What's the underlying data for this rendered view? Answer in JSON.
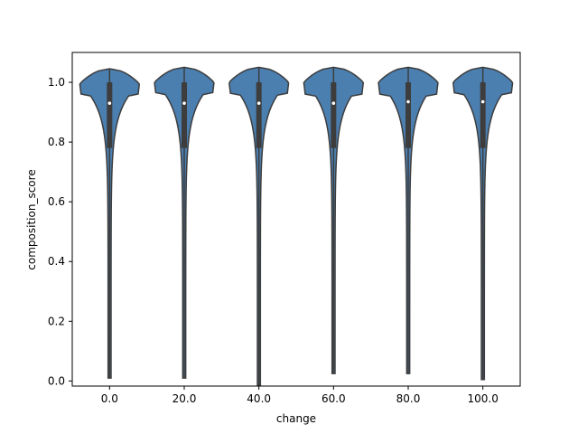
{
  "chart_data": {
    "type": "violin",
    "xlabel": "change",
    "ylabel": "composition_score",
    "categories": [
      "0.0",
      "20.0",
      "40.0",
      "60.0",
      "80.0",
      "100.0"
    ],
    "ylim": [
      -0.017,
      1.1
    ],
    "yticks": [
      "0.0",
      "0.2",
      "0.4",
      "0.6",
      "0.8",
      "1.0"
    ],
    "grid": false,
    "fill_color": "#4b7fb0",
    "edge_color": "#3d3d3d",
    "violins": [
      {
        "category": "0.0",
        "min": 0.01,
        "max": 1.045,
        "q1": 0.78,
        "median": 0.93,
        "q3": 1.0
      },
      {
        "category": "20.0",
        "min": 0.01,
        "max": 1.05,
        "q1": 0.78,
        "median": 0.93,
        "q3": 1.0
      },
      {
        "category": "40.0",
        "min": -0.015,
        "max": 1.05,
        "q1": 0.78,
        "median": 0.93,
        "q3": 1.0
      },
      {
        "category": "60.0",
        "min": 0.025,
        "max": 1.05,
        "q1": 0.78,
        "median": 0.93,
        "q3": 1.0
      },
      {
        "category": "80.0",
        "min": 0.025,
        "max": 1.05,
        "q1": 0.78,
        "median": 0.935,
        "q3": 1.0
      },
      {
        "category": "100.0",
        "min": 0.005,
        "max": 1.05,
        "q1": 0.78,
        "median": 0.935,
        "q3": 1.0
      }
    ]
  }
}
